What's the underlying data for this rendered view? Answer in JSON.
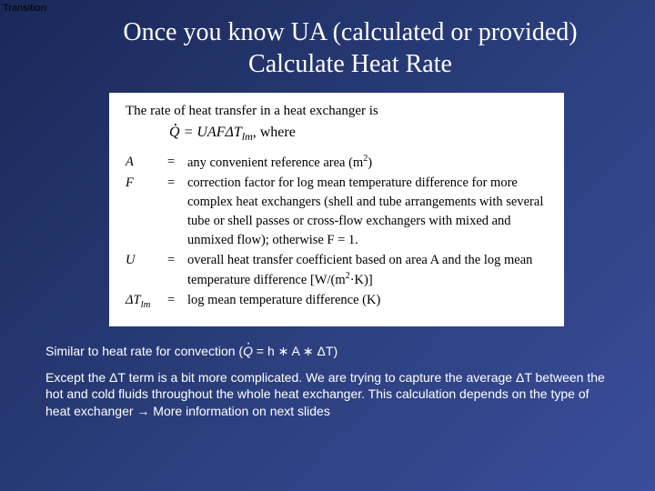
{
  "label": "Transition",
  "title_line1": "Once you know UA (calculated or provided)",
  "title_line2": "Calculate Heat Rate",
  "box": {
    "intro": "The rate of heat transfer in a heat exchanger is",
    "formula_prefix": "Q",
    "formula_body": " = UAFΔT",
    "formula_sub": "lm",
    "formula_suffix": ", where",
    "defs": [
      {
        "sym": "A",
        "text_parts": [
          "= ",
          "any convenient reference area (m",
          ")"
        ],
        "sup": "2"
      },
      {
        "sym": "F",
        "text": "correction factor for log mean temperature difference for more complex heat exchangers (shell and tube arrangements with several tube or shell passes or cross-flow exchangers with mixed and unmixed flow); otherwise F = 1."
      },
      {
        "sym": "U",
        "text_parts": [
          "overall heat transfer coefficient based on area A and the log mean temperature difference [W/(m",
          "·K)]"
        ],
        "sup": "2"
      },
      {
        "sym": "ΔT",
        "sub": "lm",
        "text": "log mean temperature difference (K)"
      }
    ]
  },
  "note1_prefix": "Similar to heat rate for convection (",
  "note1_q": "Q",
  "note1_body": " = h ∗ A ∗ ΔT)",
  "note2": "Except the ΔT term is a bit more complicated. We are trying to capture the average ΔT between the hot and cold fluids throughout the whole heat exchanger. This calculation depends on the type of heat exchanger → More information on next slides"
}
